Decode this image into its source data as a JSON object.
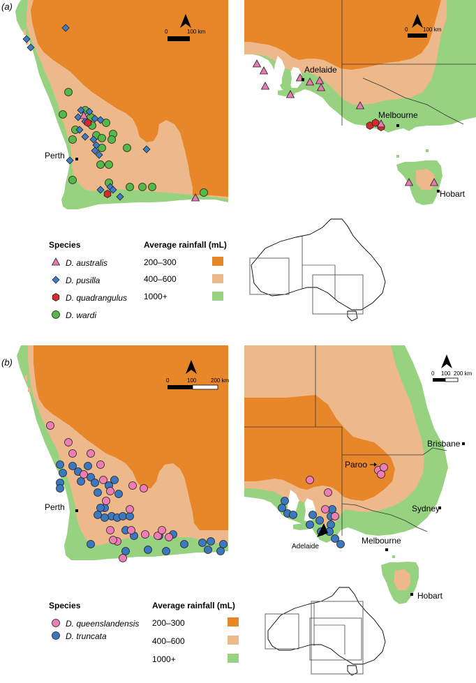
{
  "colors": {
    "rain_low": "#E8862A",
    "rain_mid": "#EDB98B",
    "rain_high": "#97D281",
    "ocean": "#FFFFFF",
    "australis": "#E67AB1",
    "pusilla": "#3E7CC4",
    "quadrangulus": "#D42A2A",
    "wardi": "#55B848",
    "queenslandensis": "#EE7DB5",
    "truncata": "#3C78C0"
  },
  "panel_a": {
    "label": "(a)",
    "west_map": {
      "city": "Perth",
      "scale": {
        "zero": "0",
        "end": "100 km"
      }
    },
    "east_map": {
      "cities": [
        "Adelaide",
        "Melbourne",
        "Hobart"
      ],
      "scale": {
        "zero": "0",
        "end": "100 km"
      }
    },
    "legend": {
      "species_title": "Species",
      "species": [
        {
          "name": "D. australis",
          "shape": "triangle",
          "color": "#E67AB1"
        },
        {
          "name": "D. pusilla",
          "shape": "diamond",
          "color": "#3E7CC4"
        },
        {
          "name": "D. quadrangulus",
          "shape": "hexagon",
          "color": "#D42A2A"
        },
        {
          "name": "D. wardi",
          "shape": "circle",
          "color": "#55B848"
        }
      ],
      "rainfall_title": "Average rainfall (mL)",
      "rainfall": [
        {
          "label": "200–300",
          "color": "#E8862A"
        },
        {
          "label": "400–600",
          "color": "#EDB98B"
        },
        {
          "label": "1000+",
          "color": "#97D281"
        }
      ]
    }
  },
  "panel_b": {
    "label": "(b)",
    "west_map": {
      "city": "Perth",
      "scale": {
        "zero": "0",
        "mid": "100",
        "end": "200 km"
      }
    },
    "east_map": {
      "cities": [
        "Brisbane",
        "Paroo",
        "Sydney",
        "Adelaide",
        "Melbourne",
        "Hobart"
      ],
      "scale": {
        "zero": "0",
        "mid": "100",
        "end": "200 km"
      }
    },
    "legend": {
      "species_title": "Species",
      "species": [
        {
          "name": "D. queenslandensis",
          "shape": "circle",
          "color": "#EE7DB5"
        },
        {
          "name": "D. truncata",
          "shape": "circle",
          "color": "#3C78C0"
        }
      ],
      "rainfall_title": "Average rainfall (mL)",
      "rainfall": [
        {
          "label": "200–300",
          "color": "#E8862A"
        },
        {
          "label": "400–600",
          "color": "#EDB98B"
        },
        {
          "label": "1000+",
          "color": "#97D281"
        }
      ]
    }
  }
}
